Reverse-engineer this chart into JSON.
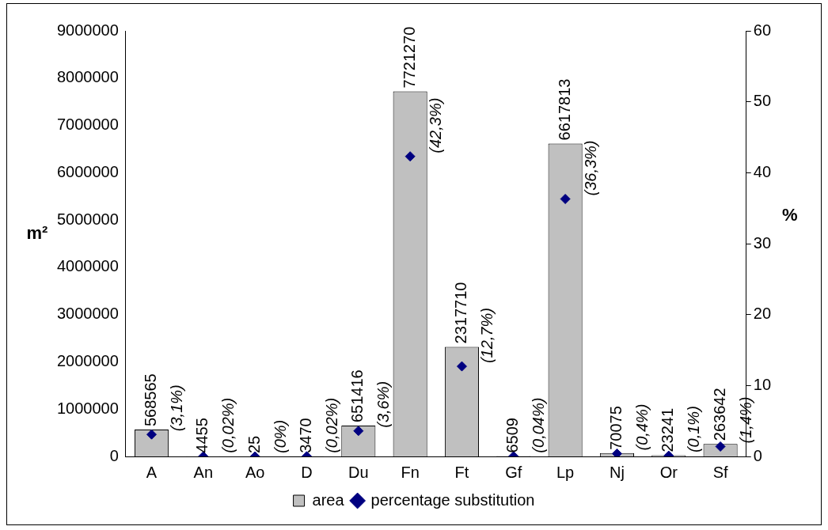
{
  "chart_data": {
    "type": "bar",
    "ylabel": "m²",
    "y2label": "%",
    "categories": [
      "A",
      "An",
      "Ao",
      "D",
      "Du",
      "Fn",
      "Ft",
      "Gf",
      "Lp",
      "Nj",
      "Or",
      "Sf"
    ],
    "series": [
      {
        "name": "area",
        "color": "#c0c0c0",
        "values": [
          568565,
          4455,
          25,
          3470,
          651416,
          7721270,
          2317710,
          6509,
          6617813,
          70075,
          23241,
          263642
        ],
        "value_labels": [
          "568565",
          "4455",
          "25",
          "3470",
          "651416",
          "7721270",
          "2317710",
          "6509",
          "6617813",
          "70075",
          "23241",
          "263642"
        ]
      },
      {
        "name": "percentage substitution",
        "type": "scatter",
        "axis": "y2",
        "color": "#000080",
        "marker": "diamond",
        "x": [
          "A",
          "An",
          "Ao",
          "D",
          "Du",
          "Fn",
          "Ft",
          "Gf",
          "Lp",
          "Nj",
          "Or",
          "Sf"
        ],
        "values": [
          3.1,
          0.02,
          0,
          0.02,
          3.6,
          42.3,
          12.7,
          0.04,
          36.3,
          0.4,
          0.1,
          1.4
        ],
        "value_labels": [
          "(3,1%)",
          "(0,02%)",
          "(0%)",
          "(0,02%)",
          "(3,6%)",
          "(42,3%)",
          "(12,7%)",
          "(0,04%)",
          "(36,3%)",
          "(0,4%)",
          "(0,1%)",
          "(1,4%)"
        ]
      }
    ],
    "ylim": [
      0,
      9000000
    ],
    "yticks": [
      0,
      1000000,
      2000000,
      3000000,
      4000000,
      5000000,
      6000000,
      7000000,
      8000000,
      9000000
    ],
    "y2lim": [
      0,
      60
    ],
    "y2ticks": [
      0,
      10,
      20,
      30,
      40,
      50,
      60
    ],
    "grid": false,
    "legend": "bottom"
  }
}
